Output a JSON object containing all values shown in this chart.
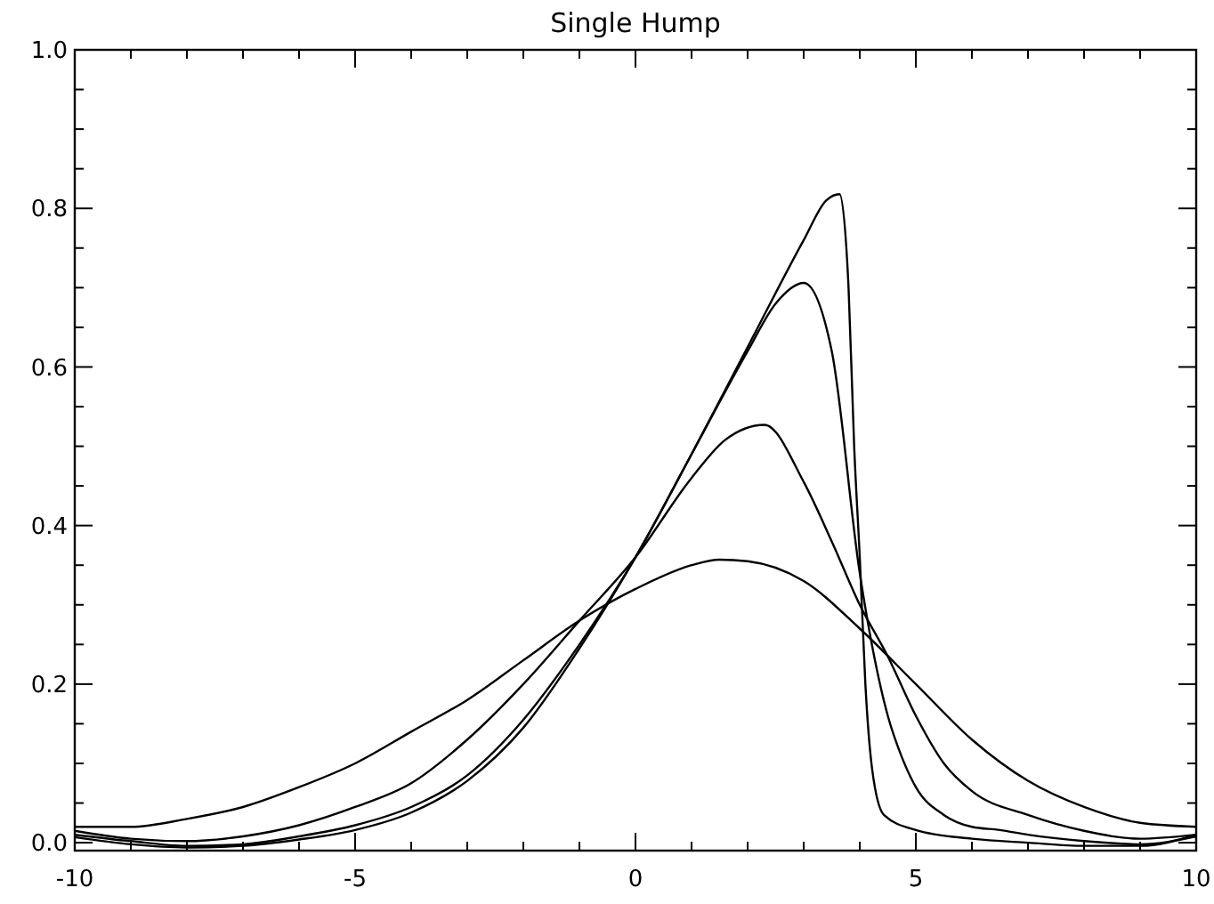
{
  "chart_data": {
    "type": "line",
    "title": "Single Hump",
    "xlim": [
      -10,
      10
    ],
    "ylim": [
      -0.01,
      1.0
    ],
    "xticks": [
      -10,
      {
        "value": -9,
        "label": null
      },
      {
        "value": -8,
        "label": null
      },
      {
        "value": -7,
        "label": null
      },
      {
        "value": -6,
        "label": null
      },
      -5,
      {
        "value": -4,
        "label": null
      },
      {
        "value": -3,
        "label": null
      },
      {
        "value": -2,
        "label": null
      },
      {
        "value": -1,
        "label": null
      },
      0,
      {
        "value": 1,
        "label": null
      },
      {
        "value": 2,
        "label": null
      },
      {
        "value": 3,
        "label": null
      },
      {
        "value": 4,
        "label": null
      },
      5,
      {
        "value": 6,
        "label": null
      },
      {
        "value": 7,
        "label": null
      },
      {
        "value": 8,
        "label": null
      },
      {
        "value": 9,
        "label": null
      },
      10
    ],
    "yticks": [
      {
        "value": 0,
        "label": "0.0"
      },
      {
        "value": 0.05,
        "label": null
      },
      {
        "value": 0.1,
        "label": null
      },
      {
        "value": 0.15,
        "label": null
      },
      {
        "value": 0.2,
        "label": "0.2"
      },
      {
        "value": 0.25,
        "label": null
      },
      {
        "value": 0.3,
        "label": null
      },
      {
        "value": 0.35,
        "label": null
      },
      {
        "value": 0.4,
        "label": "0.4"
      },
      {
        "value": 0.45,
        "label": null
      },
      {
        "value": 0.5,
        "label": null
      },
      {
        "value": 0.55,
        "label": null
      },
      {
        "value": 0.6,
        "label": "0.6"
      },
      {
        "value": 0.65,
        "label": null
      },
      {
        "value": 0.7,
        "label": null
      },
      {
        "value": 0.75,
        "label": null
      },
      {
        "value": 0.8,
        "label": "0.8"
      },
      {
        "value": 0.85,
        "label": null
      },
      {
        "value": 0.9,
        "label": null
      },
      {
        "value": 0.95,
        "label": null
      },
      {
        "value": 1.0,
        "label": "1.0"
      }
    ],
    "grid": false,
    "marker": "none",
    "line_style": "solid",
    "series": [
      {
        "color": "#000000",
        "x": [
          -10,
          -9,
          -8,
          -7,
          -6,
          -5,
          -4,
          -3,
          -2,
          -1,
          0,
          1,
          1.5,
          2,
          3,
          4,
          5,
          6,
          7,
          8,
          9,
          10
        ],
        "values": [
          0.02,
          0.02,
          0.03,
          0.045,
          0.07,
          0.1,
          0.14,
          0.18,
          0.23,
          0.28,
          0.32,
          0.35,
          0.357,
          0.355,
          0.33,
          0.27,
          0.2,
          0.13,
          0.078,
          0.045,
          0.025,
          0.02
        ]
      },
      {
        "color": "#000000",
        "x": [
          -10,
          -9,
          -8,
          -7,
          -6,
          -5,
          -4,
          -3,
          -2,
          -1,
          0,
          1,
          1.6,
          2.3,
          3,
          3.5,
          4,
          4.5,
          5,
          5.5,
          6,
          7,
          8,
          9,
          10
        ],
        "values": [
          0.015,
          0.005,
          0.002,
          0.008,
          0.022,
          0.045,
          0.075,
          0.13,
          0.2,
          0.28,
          0.36,
          0.46,
          0.508,
          0.527,
          0.455,
          0.38,
          0.3,
          0.235,
          0.16,
          0.1,
          0.065,
          0.035,
          0.015,
          0.005,
          0.01
        ]
      },
      {
        "color": "#000000",
        "x": [
          -10,
          -9,
          -8,
          -7,
          -6,
          -5,
          -4,
          -3,
          -2,
          -1,
          0,
          1,
          2,
          2.5,
          3,
          3.5,
          4,
          4.5,
          4.75,
          5,
          5.5,
          6,
          6.5,
          7,
          8,
          9,
          10
        ],
        "values": [
          0.01,
          0.002,
          -0.004,
          -0.002,
          0.008,
          0.022,
          0.045,
          0.085,
          0.155,
          0.25,
          0.36,
          0.49,
          0.62,
          0.68,
          0.706,
          0.62,
          0.34,
          0.16,
          0.108,
          0.07,
          0.035,
          0.02,
          0.016,
          0.01,
          0.002,
          -0.002,
          0.008
        ]
      },
      {
        "color": "#000000",
        "x": [
          -10,
          -9,
          -8,
          -7,
          -6,
          -5,
          -4,
          -3,
          -2,
          -1,
          0,
          1,
          2,
          3,
          3.4,
          3.64,
          3.8,
          3.9,
          4.0,
          4.1,
          4.22,
          4.43,
          5,
          6,
          7,
          8,
          9,
          10
        ],
        "values": [
          0.007,
          -0.002,
          -0.006,
          -0.004,
          0.004,
          0.016,
          0.038,
          0.078,
          0.145,
          0.245,
          0.36,
          0.49,
          0.625,
          0.76,
          0.81,
          0.818,
          0.7,
          0.5,
          0.36,
          0.2,
          0.093,
          0.035,
          0.016,
          0.005,
          0.0,
          -0.004,
          -0.004,
          0.01
        ]
      }
    ]
  }
}
